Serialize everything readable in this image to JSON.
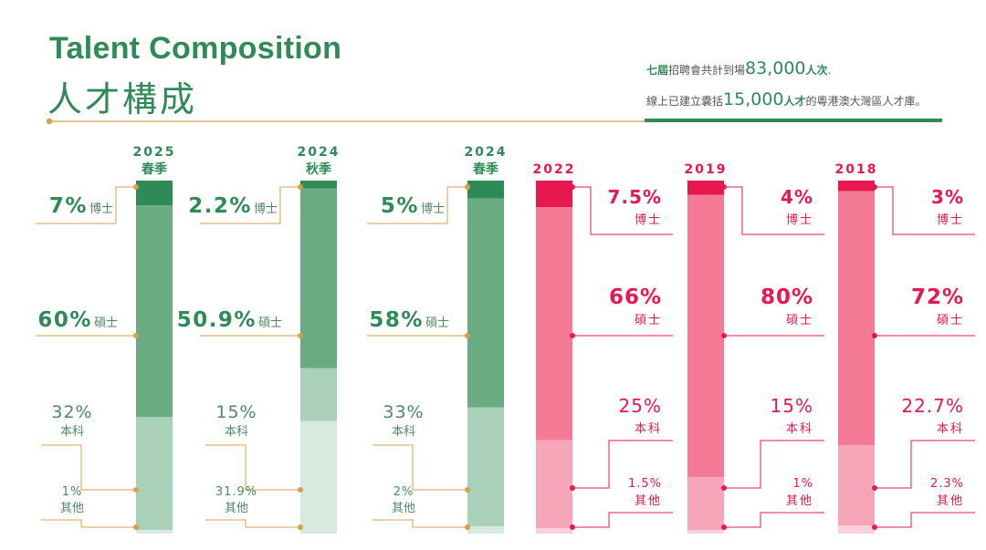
{
  "title_en": "Talent Composition",
  "title_zh": "人才構成",
  "summary": {
    "line1_a": "七屆",
    "line1_b": "招聘會共計到場",
    "line1_num": "83,000",
    "line1_c": "人次",
    "line1_d": ".",
    "line2_a": "線上已建立囊括",
    "line2_num": "15,000",
    "line2_b": "人才",
    "line2_c": "的粵港澳大灣區人才庫。"
  },
  "colors": {
    "green_dark": "#2e8b57",
    "green_mid": "#6aab82",
    "green_light": "#a9d1b9",
    "green_pale": "#d7eadf",
    "red_dark": "#e8174f",
    "red_mid": "#f47a96",
    "red_light": "#f6a6b8",
    "red_pale": "#fbd0da",
    "gold": "#d4a04a"
  },
  "chart_data": {
    "type": "bar",
    "stacked": true,
    "orientation": "vertical",
    "categories": [
      "2025 春季",
      "2024 秋季",
      "2024 春季",
      "2022",
      "2019",
      "2018"
    ],
    "segments": [
      "博士",
      "碩士",
      "本科",
      "其他"
    ],
    "series": [
      {
        "name": "博士",
        "values": [
          7,
          2.2,
          5,
          7.5,
          4,
          3
        ],
        "labels": [
          "7%",
          "2.2%",
          "5%",
          "7.5%",
          "4%",
          "3%"
        ]
      },
      {
        "name": "碩士",
        "values": [
          60,
          50.9,
          58,
          66,
          80,
          72
        ],
        "labels": [
          "60%",
          "50.9%",
          "58%",
          "66%",
          "80%",
          "72%"
        ]
      },
      {
        "name": "本科",
        "values": [
          32,
          15,
          33,
          25,
          15,
          22.7
        ],
        "labels": [
          "32%",
          "15%",
          "33%",
          "25%",
          "15%",
          "22.7%"
        ]
      },
      {
        "name": "其他",
        "values": [
          1,
          31.9,
          2,
          1.5,
          1,
          2.3
        ],
        "labels": [
          "1%",
          "31.9%",
          "2%",
          "1.5%",
          "1%",
          "2.3%"
        ]
      }
    ],
    "bars": [
      {
        "year": "2025",
        "season": "春季",
        "group": "green"
      },
      {
        "year": "2024",
        "season": "秋季",
        "group": "green"
      },
      {
        "year": "2024",
        "season": "春季",
        "group": "green"
      },
      {
        "year": "2022",
        "season": "",
        "group": "red"
      },
      {
        "year": "2019",
        "season": "",
        "group": "red"
      },
      {
        "year": "2018",
        "season": "",
        "group": "red"
      }
    ],
    "unit": "%"
  }
}
